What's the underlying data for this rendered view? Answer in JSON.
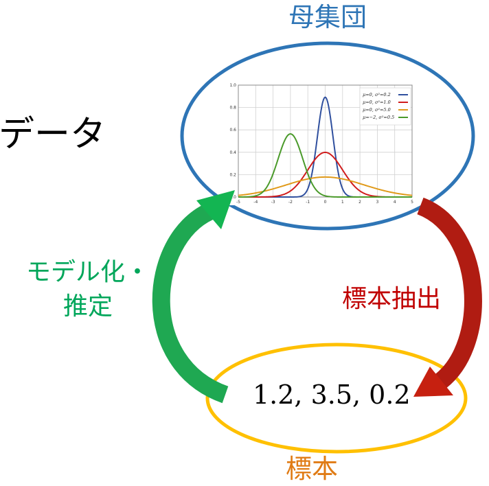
{
  "labels": {
    "population": "母集団",
    "data": "データ",
    "model_estimate": "モデル化・推定",
    "sampling": "標本抽出",
    "sample_values": "1.2, 3.5, 0.2",
    "sample": "標本"
  },
  "colors": {
    "population": "#2e75b6",
    "sample_ellipse": "#ffc000",
    "sample_text": "#e07b14",
    "model_arrow": "#00a65a",
    "sampling_arrow": "#c00000"
  },
  "chart_data": {
    "type": "line",
    "x_range": [
      -5,
      5
    ],
    "ylim": [
      0,
      1.0
    ],
    "xticks": [
      "-5",
      "-4",
      "-3",
      "-2",
      "-1",
      "0",
      "1",
      "2",
      "3",
      "4",
      "5"
    ],
    "yticks": [
      "0.0",
      "0.2",
      "0.4",
      "0.6",
      "0.8",
      "1.0"
    ],
    "legend_position": "top-right",
    "grid": true,
    "series": [
      {
        "name": "μ=0,  σ²=0.2",
        "mu": 0,
        "var": 0.2,
        "color": "#2f4f9e"
      },
      {
        "name": "μ=0,  σ²=1.0",
        "mu": 0,
        "var": 1.0,
        "color": "#d01c1c"
      },
      {
        "name": "μ=0,  σ²=5.0",
        "mu": 0,
        "var": 5.0,
        "color": "#e09a1a"
      },
      {
        "name": "μ=−2, σ²=0.5",
        "mu": -2,
        "var": 0.5,
        "color": "#4a9a2a"
      }
    ]
  }
}
